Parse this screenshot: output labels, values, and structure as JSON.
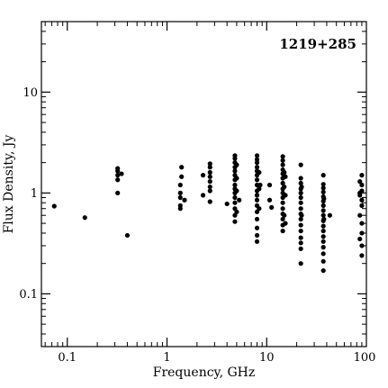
{
  "chart_data": {
    "type": "scatter",
    "title": "",
    "annotation": "1219+285",
    "xlabel": "Frequency, GHz",
    "ylabel": "Flux Density, Jy",
    "xscale": "log",
    "yscale": "log",
    "xlim": [
      0.055,
      100
    ],
    "ylim": [
      0.03,
      50
    ],
    "xticks": [
      {
        "value": 0.1,
        "label": "0.1"
      },
      {
        "value": 1,
        "label": "1"
      },
      {
        "value": 10,
        "label": "10"
      },
      {
        "value": 100,
        "label": "100"
      }
    ],
    "yticks": [
      {
        "value": 0.1,
        "label": "0.1"
      },
      {
        "value": 1,
        "label": "1"
      },
      {
        "value": 10,
        "label": "10"
      }
    ],
    "grid": false,
    "legend": "none",
    "marker_color": "#000000",
    "series": [
      {
        "points": [
          [
            0.074,
            0.74
          ],
          [
            0.15,
            0.57
          ],
          [
            0.32,
            1.0
          ],
          [
            0.32,
            1.35
          ],
          [
            0.32,
            1.5
          ],
          [
            0.32,
            1.65
          ],
          [
            0.32,
            1.75
          ],
          [
            0.35,
            1.55
          ],
          [
            0.4,
            0.38
          ],
          [
            1.36,
            0.7
          ],
          [
            1.36,
            0.75
          ],
          [
            1.36,
            0.9
          ],
          [
            1.36,
            1.0
          ],
          [
            1.36,
            1.2
          ],
          [
            1.4,
            1.45
          ],
          [
            1.4,
            1.8
          ],
          [
            1.5,
            0.85
          ],
          [
            2.3,
            0.95
          ],
          [
            2.3,
            1.5
          ],
          [
            2.7,
            0.82
          ],
          [
            2.7,
            1.05
          ],
          [
            2.7,
            1.15
          ],
          [
            2.7,
            1.3
          ],
          [
            2.7,
            1.45
          ],
          [
            2.7,
            1.6
          ],
          [
            2.7,
            1.8
          ],
          [
            2.7,
            1.95
          ],
          [
            4.0,
            0.78
          ],
          [
            4.8,
            0.52
          ],
          [
            4.8,
            0.6
          ],
          [
            4.8,
            0.7
          ],
          [
            4.8,
            0.8
          ],
          [
            4.8,
            0.9
          ],
          [
            4.8,
            1.0
          ],
          [
            4.8,
            1.1
          ],
          [
            4.8,
            1.2
          ],
          [
            4.8,
            1.35
          ],
          [
            4.8,
            1.5
          ],
          [
            4.8,
            1.65
          ],
          [
            4.8,
            1.8
          ],
          [
            4.8,
            2.0
          ],
          [
            4.8,
            2.2
          ],
          [
            4.8,
            2.35
          ],
          [
            5.0,
            0.65
          ],
          [
            5.0,
            1.05
          ],
          [
            5.0,
            1.4
          ],
          [
            5.0,
            1.9
          ],
          [
            5.3,
            0.85
          ],
          [
            8.0,
            0.33
          ],
          [
            8.0,
            0.38
          ],
          [
            8.0,
            0.45
          ],
          [
            8.0,
            0.55
          ],
          [
            8.0,
            0.65
          ],
          [
            8.0,
            0.75
          ],
          [
            8.0,
            0.85
          ],
          [
            8.0,
            0.95
          ],
          [
            8.0,
            1.05
          ],
          [
            8.0,
            1.2
          ],
          [
            8.0,
            1.35
          ],
          [
            8.0,
            1.5
          ],
          [
            8.0,
            1.65
          ],
          [
            8.0,
            1.8
          ],
          [
            8.0,
            2.0
          ],
          [
            8.0,
            2.15
          ],
          [
            8.0,
            2.35
          ],
          [
            8.4,
            0.7
          ],
          [
            8.4,
            1.1
          ],
          [
            8.4,
            1.6
          ],
          [
            8.6,
            1.2
          ],
          [
            10.7,
            0.85
          ],
          [
            10.7,
            1.2
          ],
          [
            11.2,
            0.72
          ],
          [
            14.5,
            0.42
          ],
          [
            14.5,
            0.48
          ],
          [
            14.5,
            0.55
          ],
          [
            14.5,
            0.62
          ],
          [
            14.5,
            0.7
          ],
          [
            14.5,
            0.8
          ],
          [
            14.5,
            0.9
          ],
          [
            14.5,
            1.0
          ],
          [
            14.5,
            1.1
          ],
          [
            14.5,
            1.25
          ],
          [
            14.5,
            1.4
          ],
          [
            14.5,
            1.55
          ],
          [
            14.5,
            1.7
          ],
          [
            14.5,
            1.9
          ],
          [
            14.5,
            2.1
          ],
          [
            14.5,
            2.3
          ],
          [
            15.0,
            0.6
          ],
          [
            15.0,
            1.15
          ],
          [
            15.0,
            1.6
          ],
          [
            15.4,
            0.5
          ],
          [
            15.4,
            0.95
          ],
          [
            15.4,
            1.45
          ],
          [
            22.0,
            0.2
          ],
          [
            22.0,
            0.28
          ],
          [
            22.0,
            0.32
          ],
          [
            22.0,
            0.36
          ],
          [
            22.0,
            0.42
          ],
          [
            22.0,
            0.48
          ],
          [
            22.0,
            0.55
          ],
          [
            22.0,
            0.62
          ],
          [
            22.0,
            0.7
          ],
          [
            22.0,
            0.8
          ],
          [
            22.0,
            0.9
          ],
          [
            22.0,
            1.0
          ],
          [
            22.0,
            1.1
          ],
          [
            22.0,
            1.25
          ],
          [
            22.0,
            1.4
          ],
          [
            22.0,
            1.9
          ],
          [
            22.4,
            0.6
          ],
          [
            22.4,
            1.15
          ],
          [
            37.0,
            0.17
          ],
          [
            37.0,
            0.21
          ],
          [
            37.0,
            0.25
          ],
          [
            37.0,
            0.29
          ],
          [
            37.0,
            0.33
          ],
          [
            37.0,
            0.37
          ],
          [
            37.0,
            0.42
          ],
          [
            37.0,
            0.47
          ],
          [
            37.0,
            0.53
          ],
          [
            37.0,
            0.6
          ],
          [
            37.0,
            0.67
          ],
          [
            37.0,
            0.75
          ],
          [
            37.0,
            0.83
          ],
          [
            37.0,
            0.92
          ],
          [
            37.0,
            1.02
          ],
          [
            37.0,
            1.12
          ],
          [
            37.0,
            1.22
          ],
          [
            37.0,
            1.5
          ],
          [
            37.5,
            0.55
          ],
          [
            37.5,
            0.88
          ],
          [
            43.0,
            0.6
          ],
          [
            86.0,
            0.35
          ],
          [
            86.0,
            0.6
          ],
          [
            86.0,
            0.95
          ],
          [
            86.0,
            1.0
          ],
          [
            86.0,
            1.3
          ],
          [
            90.0,
            0.24
          ],
          [
            90.0,
            0.3
          ],
          [
            90.0,
            0.4
          ],
          [
            90.0,
            0.5
          ],
          [
            90.0,
            0.75
          ],
          [
            90.0,
            0.85
          ],
          [
            90.0,
            1.05
          ],
          [
            90.0,
            1.2
          ],
          [
            90.0,
            1.5
          ]
        ]
      }
    ]
  }
}
